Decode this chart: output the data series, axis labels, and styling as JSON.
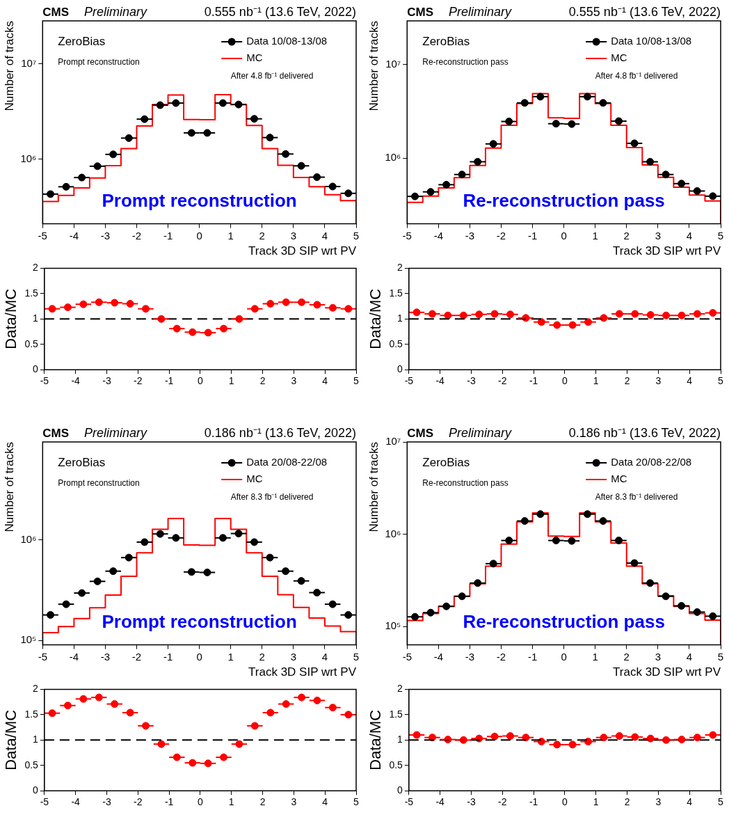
{
  "chart_data": [
    {
      "type": "scatter",
      "title": "CMS",
      "subtitle": "Preliminary",
      "xlabel": "Track 3D SIP wrt PV",
      "ylabel": "Number of tracks",
      "annotations": [
        "0.555 nb⁻¹ (13.6 TeV, 2022)",
        "ZeroBias",
        "Prompt reconstruction",
        "After 4.8 fb⁻¹ delivered",
        "Prompt reconstruction"
      ],
      "log": "y",
      "marker": "circle",
      "legend": "top right",
      "xlim": [
        -5,
        5
      ],
      "xticks": [
        -5,
        -4,
        -3,
        -2,
        -1,
        0,
        1,
        2,
        3,
        4,
        5
      ],
      "ylim": [
        210000,
        28000000
      ],
      "yticks": [
        {
          "value": 1000000,
          "label": "10⁶"
        },
        {
          "value": 10000000,
          "label": "10⁷"
        }
      ],
      "series": [
        {
          "name": "Data 10/08-13/08",
          "type": "scatter",
          "color": "#000000",
          "x": [
            -4.75,
            -4.25,
            -3.75,
            -3.25,
            -2.75,
            -2.25,
            -1.75,
            -1.25,
            -0.75,
            -0.25,
            0.25,
            0.75,
            1.25,
            1.75,
            2.25,
            2.75,
            3.25,
            3.75,
            4.25,
            4.75
          ],
          "values": [
            430000,
            513000,
            641000,
            842000,
            1120000,
            1660000,
            2620000,
            3670000,
            3860000,
            1880000,
            1880000,
            3860000,
            3730000,
            2640000,
            1680000,
            1130000,
            850000,
            647000,
            516000,
            438000
          ],
          "xerrors": [
            0.25,
            0.25,
            0.25,
            0.25,
            0.25,
            0.25,
            0.25,
            0.25,
            0.25,
            0.25,
            0.25,
            0.25,
            0.25,
            0.25,
            0.25,
            0.25,
            0.25,
            0.25,
            0.25,
            0.25
          ]
        },
        {
          "name": "MC",
          "type": "histogram",
          "color": "#ff0000",
          "bins": [
            -5,
            -4.5,
            -4,
            -3.5,
            -3,
            -2.5,
            -2,
            -1.5,
            -1,
            -0.5,
            0,
            0.5,
            1,
            1.5,
            2,
            2.5,
            3,
            3.5,
            4,
            4.5,
            5
          ],
          "values": [
            360000,
            417000,
            500000,
            634000,
            855000,
            1290000,
            2220000,
            3730000,
            4680000,
            2600000,
            2580000,
            4730000,
            3730000,
            2250000,
            1290000,
            860000,
            641000,
            513000,
            423000,
            367000
          ]
        }
      ]
    },
    {
      "type": "scatter",
      "title": "CMS",
      "subtitle": "Preliminary",
      "xlabel": "Track 3D SIP wrt PV",
      "ylabel": "Number of tracks",
      "annotations": [
        "0.555 nb⁻¹ (13.6 TeV, 2022)",
        "ZeroBias",
        "Re-reconstruction pass",
        "After 4.8 fb⁻¹ delivered",
        "Re-reconstruction pass"
      ],
      "log": "y",
      "marker": "circle",
      "legend": "top right",
      "xlim": [
        -5,
        5
      ],
      "xticks": [
        -5,
        -4,
        -3,
        -2,
        -1,
        0,
        1,
        2,
        3,
        4,
        5
      ],
      "ylim": [
        200000,
        29000000
      ],
      "yticks": [
        {
          "value": 1000000,
          "label": "10⁶"
        },
        {
          "value": 10000000,
          "label": "10⁷"
        }
      ],
      "series": [
        {
          "name": "Data 10/08-13/08",
          "type": "scatter",
          "color": "#000000",
          "x": [
            -4.75,
            -4.25,
            -3.75,
            -3.25,
            -2.75,
            -2.25,
            -1.75,
            -1.25,
            -0.75,
            -0.25,
            0.25,
            0.75,
            1.25,
            1.75,
            2.25,
            2.75,
            3.25,
            3.75,
            4.25,
            4.75
          ],
          "values": [
            392000,
            438000,
            522000,
            670000,
            916000,
            1420000,
            2460000,
            3880000,
            4520000,
            2330000,
            2310000,
            4520000,
            3880000,
            2480000,
            1440000,
            916000,
            670000,
            536000,
            447000,
            394000
          ],
          "xerrors": [
            0.25,
            0.25,
            0.25,
            0.25,
            0.25,
            0.25,
            0.25,
            0.25,
            0.25,
            0.25,
            0.25,
            0.25,
            0.25,
            0.25,
            0.25,
            0.25,
            0.25,
            0.25,
            0.25,
            0.25
          ]
        },
        {
          "name": "MC",
          "type": "histogram",
          "color": "#ff0000",
          "bins": [
            -5,
            -4.5,
            -4,
            -3.5,
            -3,
            -2.5,
            -2,
            -1.5,
            -1,
            -0.5,
            0,
            0.5,
            1,
            1.5,
            2,
            2.5,
            3,
            3.5,
            4,
            4.5,
            5
          ],
          "values": [
            338000,
            394000,
            483000,
            620000,
            838000,
            1280000,
            2240000,
            3820000,
            4880000,
            2690000,
            2660000,
            4880000,
            3820000,
            2240000,
            1300000,
            847000,
            627000,
            491000,
            405000,
            350000
          ]
        }
      ]
    },
    {
      "type": "scatter",
      "ylabel": "Data/MC",
      "marker": "circle",
      "xlim": [
        -5,
        5
      ],
      "xticks": [
        -5,
        -4,
        -3,
        -2,
        -1,
        0,
        1,
        2,
        3,
        4,
        5
      ],
      "ylim": [
        0,
        2
      ],
      "yticks": [
        0,
        0.5,
        1,
        1.5,
        2
      ],
      "color": "#ff0000",
      "x": [
        -4.75,
        -4.25,
        -3.75,
        -3.25,
        -2.75,
        -2.25,
        -1.75,
        -1.25,
        -0.75,
        -0.25,
        0.25,
        0.75,
        1.25,
        1.75,
        2.25,
        2.75,
        3.25,
        3.75,
        4.25,
        4.75
      ],
      "values": [
        1.2,
        1.23,
        1.29,
        1.33,
        1.32,
        1.3,
        1.2,
        1.0,
        0.81,
        0.74,
        0.73,
        0.81,
        1.0,
        1.2,
        1.3,
        1.33,
        1.33,
        1.28,
        1.22,
        1.2
      ],
      "xerrors": [
        0.25,
        0.25,
        0.25,
        0.25,
        0.25,
        0.25,
        0.25,
        0.25,
        0.25,
        0.25,
        0.25,
        0.25,
        0.25,
        0.25,
        0.25,
        0.25,
        0.25,
        0.25,
        0.25,
        0.25
      ],
      "ref_lines": [
        {
          "axis": "y",
          "value": 1,
          "color": "#000000",
          "line_style": "dashed"
        }
      ]
    },
    {
      "type": "scatter",
      "ylabel": "Data/MC",
      "marker": "circle",
      "xlim": [
        -5,
        5
      ],
      "xticks": [
        -5,
        -4,
        -3,
        -2,
        -1,
        0,
        1,
        2,
        3,
        4,
        5
      ],
      "ylim": [
        0,
        2
      ],
      "yticks": [
        0,
        0.5,
        1,
        1.5,
        2
      ],
      "color": "#ff0000",
      "x": [
        -4.75,
        -4.25,
        -3.75,
        -3.25,
        -2.75,
        -2.25,
        -1.75,
        -1.25,
        -0.75,
        -0.25,
        0.25,
        0.75,
        1.25,
        1.75,
        2.25,
        2.75,
        3.25,
        3.75,
        4.25,
        4.75
      ],
      "values": [
        1.13,
        1.1,
        1.07,
        1.07,
        1.09,
        1.1,
        1.09,
        1.02,
        0.94,
        0.88,
        0.88,
        0.94,
        1.02,
        1.1,
        1.1,
        1.08,
        1.07,
        1.07,
        1.1,
        1.12
      ],
      "xerrors": [
        0.25,
        0.25,
        0.25,
        0.25,
        0.25,
        0.25,
        0.25,
        0.25,
        0.25,
        0.25,
        0.25,
        0.25,
        0.25,
        0.25,
        0.25,
        0.25,
        0.25,
        0.25,
        0.25,
        0.25
      ],
      "ref_lines": [
        {
          "axis": "y",
          "value": 1,
          "color": "#000000",
          "line_style": "dashed"
        }
      ]
    },
    {
      "type": "scatter",
      "title": "CMS",
      "subtitle": "Preliminary",
      "xlabel": "Track 3D SIP wrt PV",
      "ylabel": "Number of tracks",
      "annotations": [
        "0.186 nb⁻¹ (13.6 TeV, 2022)",
        "ZeroBias",
        "Prompt reconstruction",
        "After 8.3 fb⁻¹ delivered",
        "Prompt reconstruction"
      ],
      "log": "y",
      "marker": "circle",
      "legend": "top right",
      "xlim": [
        -5,
        5
      ],
      "xticks": [
        -5,
        -4,
        -3,
        -2,
        -1,
        0,
        1,
        2,
        3,
        4,
        5
      ],
      "ylim": [
        90000,
        9500000
      ],
      "yticks": [
        {
          "value": 100000,
          "label": "10⁵"
        },
        {
          "value": 1000000,
          "label": "10⁶"
        }
      ],
      "series": [
        {
          "name": "Data 20/08-22/08",
          "type": "scatter",
          "color": "#000000",
          "x": [
            -4.75,
            -4.25,
            -3.75,
            -3.25,
            -2.75,
            -2.25,
            -1.75,
            -1.25,
            -0.75,
            -0.25,
            0.25,
            0.75,
            1.25,
            1.75,
            2.25,
            2.75,
            3.25,
            3.75,
            4.25,
            4.75
          ],
          "values": [
            179000,
            229000,
            296000,
            387000,
            489000,
            668000,
            953000,
            1150000,
            1050000,
            480000,
            475000,
            1050000,
            1160000,
            953000,
            668000,
            489000,
            391000,
            299000,
            229000,
            179000
          ],
          "xerrors": [
            0.25,
            0.25,
            0.25,
            0.25,
            0.25,
            0.25,
            0.25,
            0.25,
            0.25,
            0.25,
            0.25,
            0.25,
            0.25,
            0.25,
            0.25,
            0.25,
            0.25,
            0.25,
            0.25,
            0.25
          ]
        },
        {
          "name": "MC",
          "type": "histogram",
          "color": "#ff0000",
          "bins": [
            -5,
            -4.5,
            -4,
            -3.5,
            -3,
            -2.5,
            -2,
            -1.5,
            -1,
            -0.5,
            0,
            0.5,
            1,
            1.5,
            2,
            2.5,
            3,
            3.5,
            4,
            4.5,
            5
          ],
          "values": [
            119000,
            137000,
            165000,
            211000,
            282000,
            435000,
            747000,
            1280000,
            1640000,
            894000,
            885000,
            1640000,
            1280000,
            747000,
            435000,
            285000,
            213000,
            167000,
            139000,
            122000
          ]
        }
      ]
    },
    {
      "type": "scatter",
      "title": "CMS",
      "subtitle": "Preliminary",
      "xlabel": "Track 3D SIP wrt PV",
      "ylabel": "Number of tracks",
      "annotations": [
        "0.186 nb⁻¹ (13.6 TeV, 2022)",
        "ZeroBias",
        "Re-reconstruction pass",
        "After 8.3 fb⁻¹ delivered",
        "Re-reconstruction pass"
      ],
      "log": "y",
      "marker": "circle",
      "legend": "top right",
      "xlim": [
        -5,
        5
      ],
      "xticks": [
        -5,
        -4,
        -3,
        -2,
        -1,
        0,
        1,
        2,
        3,
        4,
        5
      ],
      "ylim": [
        63000,
        10000000
      ],
      "yticks": [
        {
          "value": 100000,
          "label": "10⁵"
        },
        {
          "value": 1000000,
          "label": "10⁶"
        },
        {
          "value": 10000000,
          "label": "10⁷"
        }
      ],
      "series": [
        {
          "name": "Data 20/08-22/08",
          "type": "scatter",
          "color": "#000000",
          "x": [
            -4.75,
            -4.25,
            -3.75,
            -3.25,
            -2.75,
            -2.25,
            -1.75,
            -1.25,
            -0.75,
            -0.25,
            0.25,
            0.75,
            1.25,
            1.75,
            2.25,
            2.75,
            3.25,
            3.75,
            4.25,
            4.75
          ],
          "values": [
            127000,
            141000,
            165000,
            212000,
            295000,
            479000,
            854000,
            1390000,
            1650000,
            854000,
            845000,
            1650000,
            1390000,
            854000,
            486000,
            295000,
            212000,
            167000,
            143000,
            129000
          ],
          "xerrors": [
            0.25,
            0.25,
            0.25,
            0.25,
            0.25,
            0.25,
            0.25,
            0.25,
            0.25,
            0.25,
            0.25,
            0.25,
            0.25,
            0.25,
            0.25,
            0.25,
            0.25,
            0.25,
            0.25,
            0.25
          ]
        },
        {
          "name": "MC",
          "type": "histogram",
          "color": "#ff0000",
          "bins": [
            -5,
            -4.5,
            -4,
            -3.5,
            -3,
            -2.5,
            -2,
            -1.5,
            -1,
            -0.5,
            0,
            0.5,
            1,
            1.5,
            2,
            2.5,
            3,
            3.5,
            4,
            4.5,
            5
          ],
          "values": [
            116000,
            138000,
            165000,
            212000,
            290000,
            449000,
            781000,
            1360000,
            1700000,
            954000,
            944000,
            1700000,
            1360000,
            802000,
            449000,
            290000,
            215000,
            165000,
            138000,
            117000
          ]
        }
      ]
    },
    {
      "type": "scatter",
      "ylabel": "Data/MC",
      "marker": "circle",
      "xlim": [
        -5,
        5
      ],
      "xticks": [
        -5,
        -4,
        -3,
        -2,
        -1,
        0,
        1,
        2,
        3,
        4,
        5
      ],
      "ylim": [
        0,
        2
      ],
      "yticks": [
        0,
        0.5,
        1,
        1.5,
        2
      ],
      "color": "#ff0000",
      "x": [
        -4.75,
        -4.25,
        -3.75,
        -3.25,
        -2.75,
        -2.25,
        -1.75,
        -1.25,
        -0.75,
        -0.25,
        0.25,
        0.75,
        1.25,
        1.75,
        2.25,
        2.75,
        3.25,
        3.75,
        4.25,
        4.75
      ],
      "values": [
        1.53,
        1.68,
        1.81,
        1.84,
        1.71,
        1.54,
        1.28,
        0.92,
        0.66,
        0.55,
        0.54,
        0.66,
        0.92,
        1.28,
        1.54,
        1.71,
        1.84,
        1.78,
        1.64,
        1.5
      ],
      "xerrors": [
        0.25,
        0.25,
        0.25,
        0.25,
        0.25,
        0.25,
        0.25,
        0.25,
        0.25,
        0.25,
        0.25,
        0.25,
        0.25,
        0.25,
        0.25,
        0.25,
        0.25,
        0.25,
        0.25,
        0.25
      ],
      "ref_lines": [
        {
          "axis": "y",
          "value": 1,
          "color": "#000000",
          "line_style": "dashed"
        }
      ]
    },
    {
      "type": "scatter",
      "ylabel": "Data/MC",
      "marker": "circle",
      "xlim": [
        -5,
        5
      ],
      "xticks": [
        -5,
        -4,
        -3,
        -2,
        -1,
        0,
        1,
        2,
        3,
        4,
        5
      ],
      "ylim": [
        0,
        2
      ],
      "yticks": [
        0,
        0.5,
        1,
        1.5,
        2
      ],
      "color": "#ff0000",
      "x": [
        -4.75,
        -4.25,
        -3.75,
        -3.25,
        -2.75,
        -2.25,
        -1.75,
        -1.25,
        -0.75,
        -0.25,
        0.25,
        0.75,
        1.25,
        1.75,
        2.25,
        2.75,
        3.25,
        3.75,
        4.25,
        4.75
      ],
      "values": [
        1.1,
        1.05,
        1.01,
        1.0,
        1.03,
        1.07,
        1.08,
        1.05,
        0.97,
        0.91,
        0.91,
        0.97,
        1.05,
        1.08,
        1.06,
        1.03,
        1.0,
        1.01,
        1.05,
        1.1
      ],
      "xerrors": [
        0.25,
        0.25,
        0.25,
        0.25,
        0.25,
        0.25,
        0.25,
        0.25,
        0.25,
        0.25,
        0.25,
        0.25,
        0.25,
        0.25,
        0.25,
        0.25,
        0.25,
        0.25,
        0.25,
        0.25
      ],
      "ref_lines": [
        {
          "axis": "y",
          "value": 1,
          "color": "#000000",
          "line_style": "dashed"
        }
      ]
    }
  ]
}
